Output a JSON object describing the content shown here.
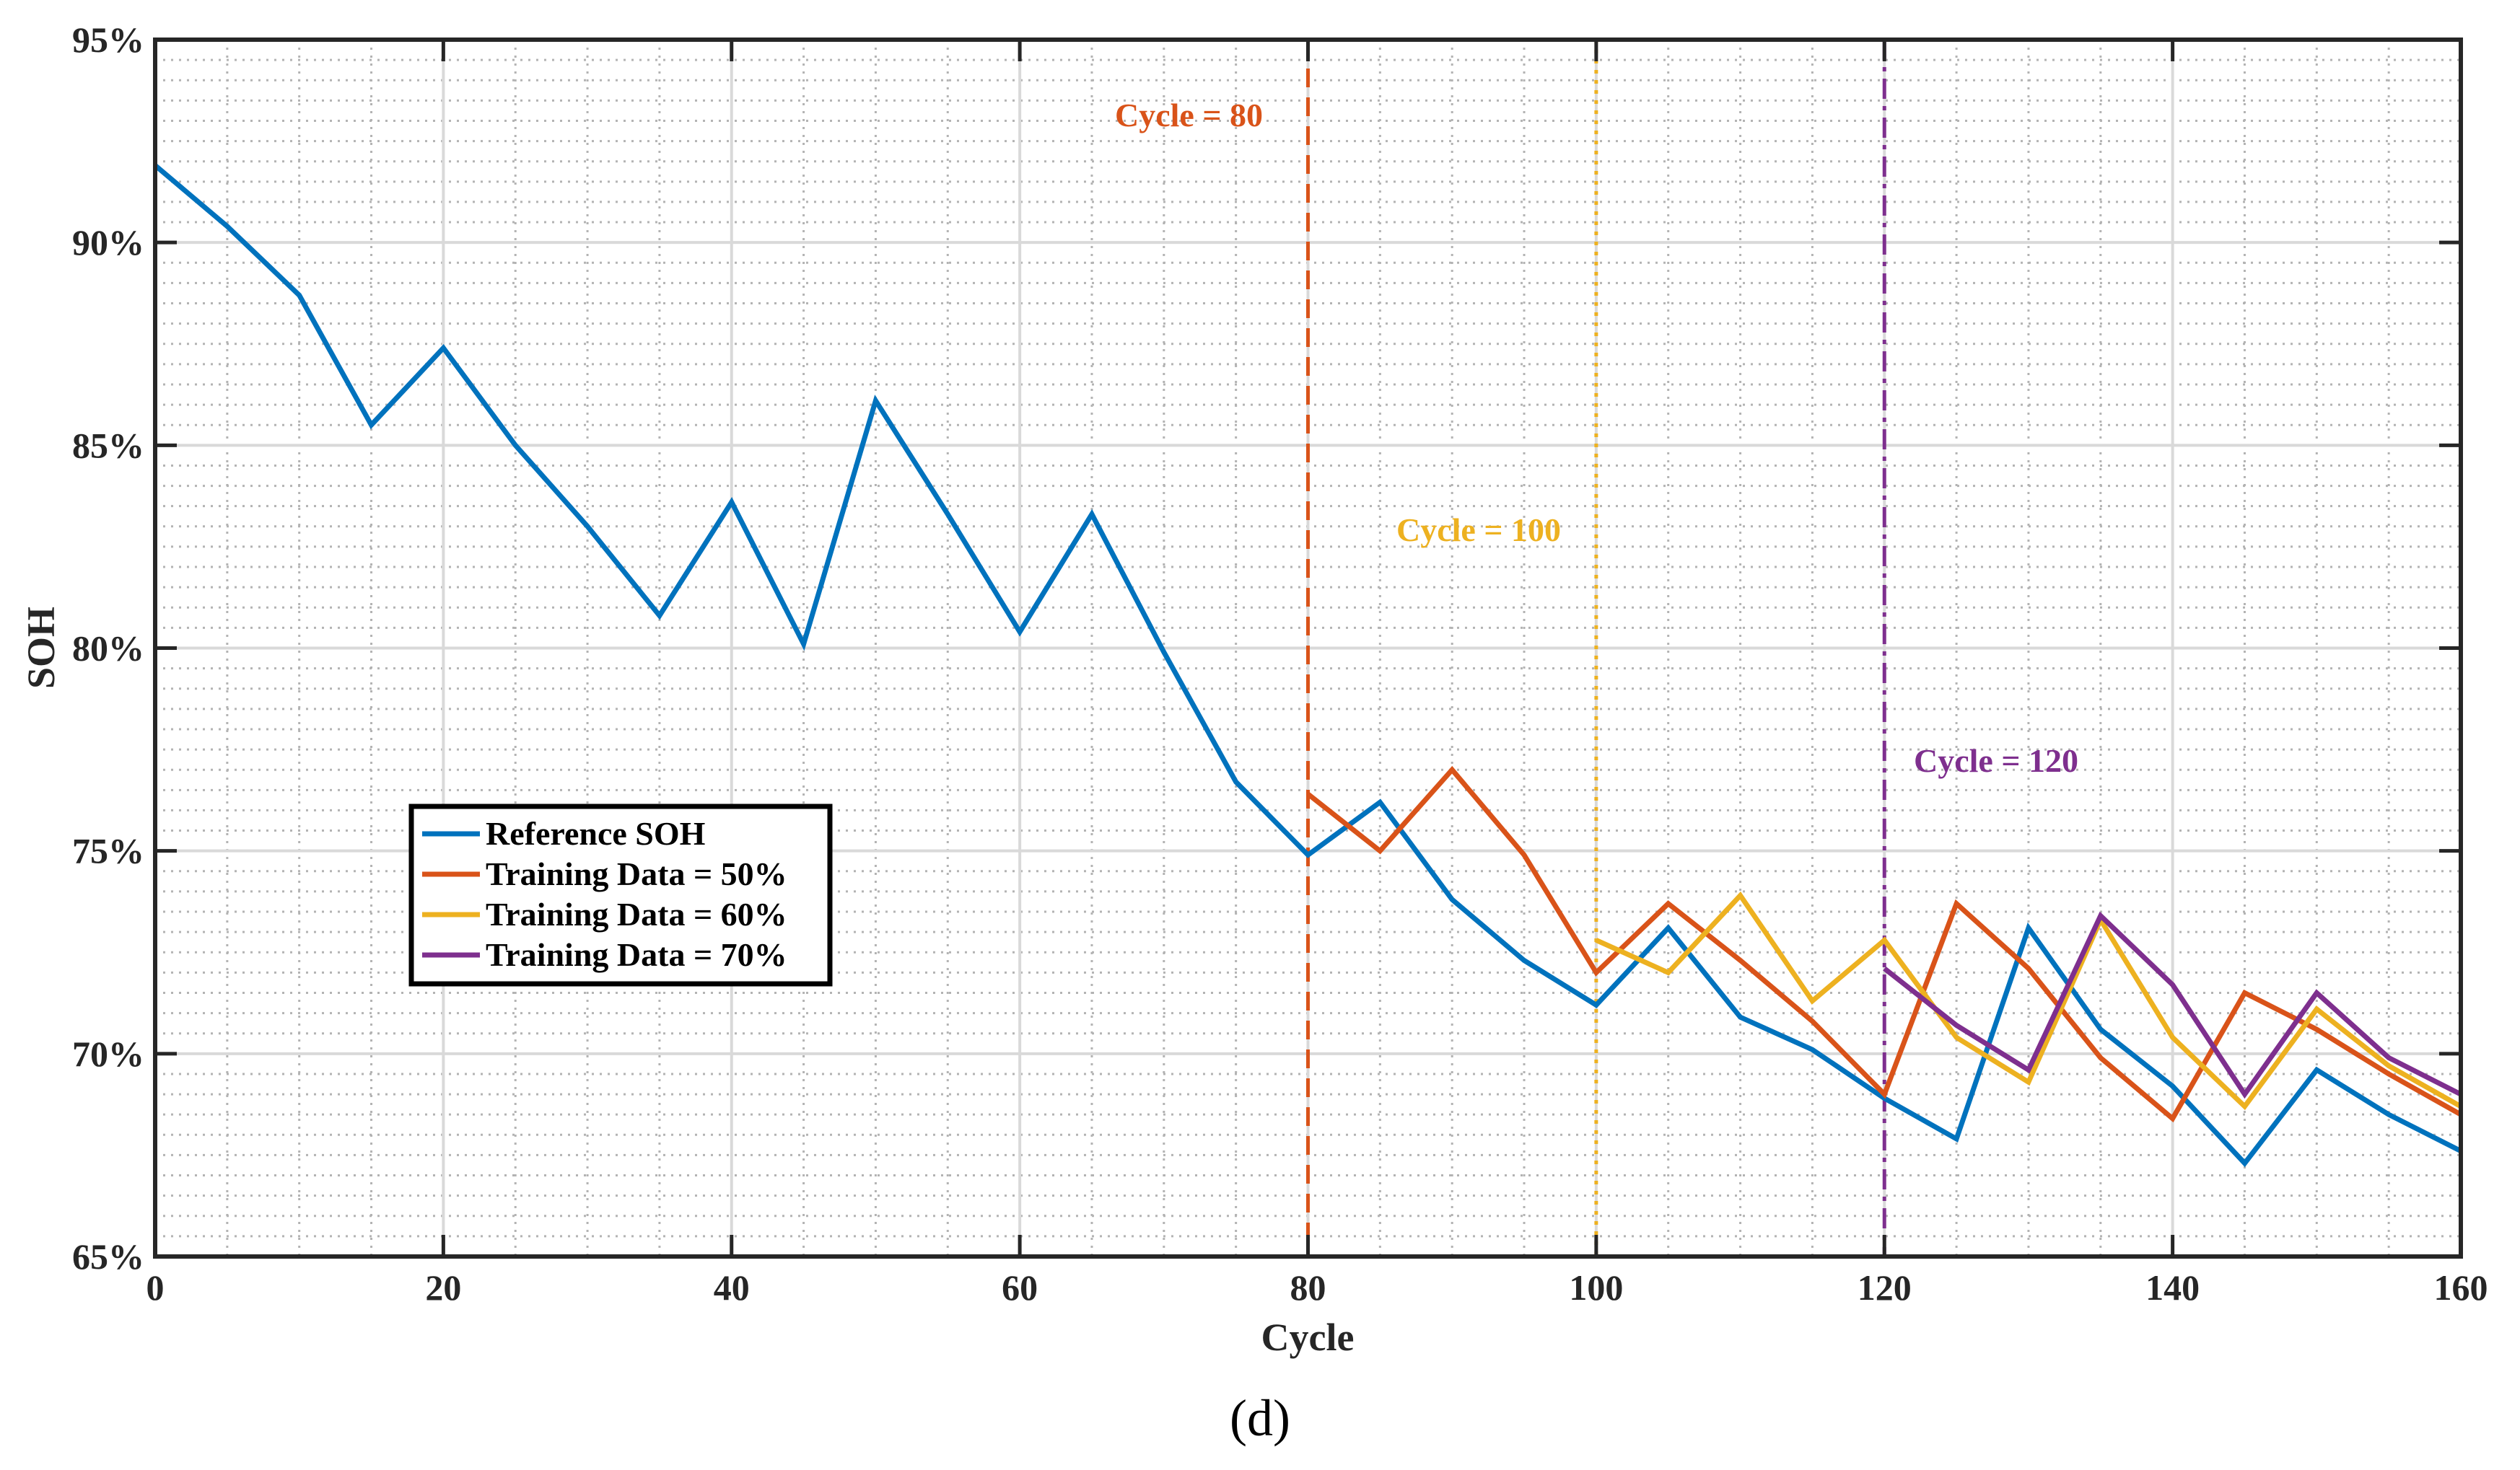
{
  "chart_data": {
    "type": "line",
    "title": "",
    "xlabel": "Cycle",
    "ylabel": "SOH",
    "xlim": [
      0,
      160
    ],
    "ylim": [
      65,
      95
    ],
    "x_ticks": [
      0,
      20,
      40,
      60,
      80,
      100,
      120,
      140,
      160
    ],
    "x_tick_labels": [
      "0",
      "20",
      "40",
      "60",
      "80",
      "100",
      "120",
      "140",
      "160"
    ],
    "y_ticks": [
      65,
      70,
      75,
      80,
      85,
      90,
      95
    ],
    "y_tick_labels": [
      "65%",
      "70%",
      "75%",
      "80%",
      "85%",
      "90%",
      "95%"
    ],
    "grid": true,
    "legend_position": "middle-left",
    "series": [
      {
        "name": "Reference SOH",
        "color": "#0072BD",
        "x": [
          0,
          5,
          10,
          15,
          20,
          25,
          30,
          35,
          40,
          45,
          50,
          55,
          60,
          65,
          70,
          75,
          80,
          85,
          90,
          95,
          100,
          105,
          110,
          115,
          120,
          125,
          130,
          135,
          140,
          145,
          150,
          155,
          160
        ],
        "values": [
          91.9,
          90.4,
          88.7,
          85.5,
          87.4,
          85.0,
          83.0,
          80.8,
          83.6,
          80.1,
          86.1,
          83.3,
          80.4,
          83.3,
          79.9,
          76.7,
          74.9,
          76.2,
          73.8,
          72.3,
          71.2,
          73.1,
          70.9,
          70.1,
          68.9,
          67.9,
          73.1,
          70.6,
          69.2,
          67.3,
          69.6,
          68.5,
          67.6
        ]
      },
      {
        "name": "Training Data = 50%",
        "color": "#D95319",
        "x": [
          80,
          85,
          90,
          95,
          100,
          105,
          110,
          115,
          120,
          125,
          130,
          135,
          140,
          145,
          150,
          155,
          160
        ],
        "values": [
          76.4,
          75.0,
          77.0,
          74.9,
          72.0,
          73.7,
          72.3,
          70.8,
          69.0,
          73.7,
          72.1,
          69.9,
          68.4,
          71.5,
          70.6,
          69.5,
          68.5
        ]
      },
      {
        "name": "Training Data = 60%",
        "color": "#EDB120",
        "x": [
          100,
          105,
          110,
          115,
          120,
          125,
          130,
          135,
          140,
          145,
          150,
          155,
          160
        ],
        "values": [
          72.8,
          72.0,
          73.9,
          71.3,
          72.8,
          70.4,
          69.3,
          73.3,
          70.4,
          68.7,
          71.1,
          69.7,
          68.7
        ]
      },
      {
        "name": "Training Data = 70%",
        "color": "#7E2F8E",
        "x": [
          120,
          125,
          130,
          135,
          140,
          145,
          150,
          155,
          160
        ],
        "values": [
          72.1,
          70.7,
          69.6,
          73.4,
          71.7,
          69.0,
          71.5,
          69.9,
          69.0
        ]
      }
    ],
    "vlines": [
      {
        "x": 80,
        "label": "Cycle = 80",
        "color": "#D95319",
        "style": "dashed"
      },
      {
        "x": 100,
        "label": "Cycle = 100",
        "color": "#EDB120",
        "style": "dotted"
      },
      {
        "x": 120,
        "label": "Cycle = 120",
        "color": "#7E2F8E",
        "style": "dashdot"
      }
    ],
    "caption": "(d)"
  }
}
